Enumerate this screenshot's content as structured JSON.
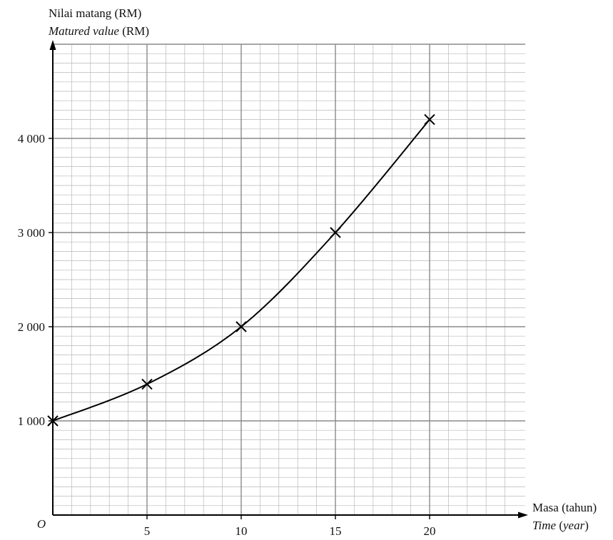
{
  "chart_data": {
    "type": "line",
    "title": "",
    "ylabel": {
      "line1": "Nilai matang (RM)",
      "line2_italic": "Matured value",
      "line2_rest": " (RM)"
    },
    "xlabel": {
      "line1": "Masa (tahun)",
      "line2_italic1": "Time",
      "line2_mid": " (",
      "line2_italic2": "year",
      "line2_end": ")"
    },
    "origin_label": "O",
    "xlim": [
      0,
      24
    ],
    "ylim": [
      0,
      5000
    ],
    "x_ticks": [
      5,
      10,
      15,
      20
    ],
    "x_tick_labels": [
      "5",
      "10",
      "15",
      "20"
    ],
    "y_ticks": [
      1000,
      2000,
      3000,
      4000
    ],
    "y_tick_labels": [
      "1 000",
      "2 000",
      "3 000",
      "4 000"
    ],
    "grid": true,
    "minor_grid_x_step": 1,
    "minor_grid_y_step": 100,
    "points": [
      {
        "x": 0,
        "y": 1000
      },
      {
        "x": 5,
        "y": 1390
      },
      {
        "x": 10,
        "y": 2000
      },
      {
        "x": 15,
        "y": 3000
      },
      {
        "x": 20,
        "y": 4200
      }
    ],
    "marker": "cross",
    "curve": "smooth"
  }
}
